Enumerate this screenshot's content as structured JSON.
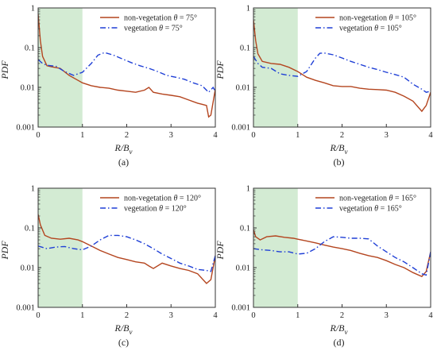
{
  "colors": {
    "non_vegetation": "#b4451f",
    "vegetation": "#1f3fd6",
    "shade": "#d3ebd3",
    "axis": "#333333"
  },
  "chart_data": [
    {
      "type": "line",
      "panel": "(a)",
      "ylabel": "PDF",
      "xlabel": "R/B",
      "xlabel_sub": "v",
      "xlim": [
        0,
        4
      ],
      "ylim": [
        0.001,
        1
      ],
      "yscale": "log",
      "x_ticks": [
        "0",
        "1",
        "2",
        "3",
        "4"
      ],
      "y_ticks": [
        "0.001",
        "0.01",
        "0.1",
        "1"
      ],
      "shaded_x": [
        0,
        1
      ],
      "legend_position": "top-right",
      "series": [
        {
          "name": "non-vegetation θ = 75°",
          "legend_prefix": "non-vegetation ",
          "legend_theta": "θ",
          "legend_value": " = 75°",
          "style": "solid",
          "color": "#b4451f",
          "x": [
            0,
            0.05,
            0.1,
            0.2,
            0.3,
            0.5,
            0.7,
            0.9,
            1.0,
            1.2,
            1.4,
            1.6,
            1.8,
            2.0,
            2.2,
            2.4,
            2.5,
            2.6,
            2.8,
            3.0,
            3.2,
            3.4,
            3.6,
            3.8,
            3.85,
            3.9,
            4.0
          ],
          "y": [
            0.7,
            0.15,
            0.06,
            0.035,
            0.033,
            0.03,
            0.02,
            0.015,
            0.013,
            0.011,
            0.01,
            0.0095,
            0.0085,
            0.008,
            0.0075,
            0.0085,
            0.01,
            0.0075,
            0.0068,
            0.0063,
            0.0058,
            0.0048,
            0.004,
            0.0035,
            0.0018,
            0.002,
            0.009
          ]
        },
        {
          "name": "vegetation θ = 75°",
          "legend_prefix": "vegetation ",
          "legend_theta": "θ",
          "legend_value": " = 75°",
          "style": "dashdot",
          "color": "#1f3fd6",
          "x": [
            0,
            0.1,
            0.2,
            0.4,
            0.6,
            0.8,
            1.0,
            1.2,
            1.35,
            1.5,
            1.7,
            1.9,
            2.1,
            2.3,
            2.5,
            2.7,
            2.9,
            3.1,
            3.3,
            3.5,
            3.7,
            3.85,
            3.95,
            4.0
          ],
          "y": [
            0.05,
            0.04,
            0.036,
            0.034,
            0.025,
            0.02,
            0.024,
            0.04,
            0.065,
            0.075,
            0.065,
            0.052,
            0.042,
            0.035,
            0.03,
            0.025,
            0.02,
            0.018,
            0.016,
            0.013,
            0.011,
            0.0075,
            0.01,
            0.008
          ]
        }
      ]
    },
    {
      "type": "line",
      "panel": "(b)",
      "ylabel": "PDF",
      "xlabel": "R/B",
      "xlabel_sub": "v",
      "xlim": [
        0,
        4
      ],
      "ylim": [
        0.001,
        1
      ],
      "yscale": "log",
      "x_ticks": [
        "0",
        "1",
        "2",
        "3",
        "4"
      ],
      "y_ticks": [
        "0.001",
        "0.01",
        "0.1",
        "1"
      ],
      "shaded_x": [
        0,
        1
      ],
      "legend_position": "top-right",
      "series": [
        {
          "name": "non-vegetation θ = 105°",
          "legend_prefix": "non-vegetation ",
          "legend_theta": "θ",
          "legend_value": " = 105°",
          "style": "solid",
          "color": "#b4451f",
          "x": [
            0,
            0.05,
            0.1,
            0.2,
            0.4,
            0.6,
            0.8,
            1.0,
            1.2,
            1.4,
            1.6,
            1.8,
            2.0,
            2.2,
            2.4,
            2.6,
            2.8,
            3.0,
            3.2,
            3.4,
            3.6,
            3.8,
            3.9,
            4.0
          ],
          "y": [
            0.5,
            0.15,
            0.07,
            0.045,
            0.04,
            0.038,
            0.032,
            0.025,
            0.018,
            0.015,
            0.013,
            0.011,
            0.0105,
            0.0105,
            0.0095,
            0.009,
            0.0088,
            0.0085,
            0.0075,
            0.006,
            0.0045,
            0.0025,
            0.0035,
            0.0075
          ]
        },
        {
          "name": "vegetation θ = 105°",
          "legend_prefix": "vegetation ",
          "legend_theta": "θ",
          "legend_value": " = 105°",
          "style": "dashdot",
          "color": "#1f3fd6",
          "x": [
            0,
            0.1,
            0.2,
            0.4,
            0.6,
            0.8,
            1.0,
            1.2,
            1.4,
            1.5,
            1.6,
            1.8,
            2.0,
            2.2,
            2.4,
            2.6,
            2.8,
            3.0,
            3.2,
            3.4,
            3.6,
            3.8,
            3.9,
            4.0
          ],
          "y": [
            0.06,
            0.04,
            0.032,
            0.03,
            0.022,
            0.02,
            0.019,
            0.025,
            0.055,
            0.072,
            0.073,
            0.066,
            0.055,
            0.045,
            0.038,
            0.032,
            0.028,
            0.024,
            0.021,
            0.018,
            0.012,
            0.009,
            0.0075,
            0.008
          ]
        }
      ]
    },
    {
      "type": "line",
      "panel": "(c)",
      "ylabel": "PDF",
      "xlabel": "R/B",
      "xlabel_sub": "v",
      "xlim": [
        0,
        4
      ],
      "ylim": [
        0.001,
        1
      ],
      "yscale": "log",
      "x_ticks": [
        "0",
        "1",
        "2",
        "3",
        "4"
      ],
      "y_ticks": [
        "0.001",
        "0.01",
        "0.1",
        "1"
      ],
      "shaded_x": [
        0,
        1
      ],
      "legend_position": "top-right",
      "series": [
        {
          "name": "non-vegetation θ = 120°",
          "legend_prefix": "non-vegetation ",
          "legend_theta": "θ",
          "legend_value": " = 120°",
          "style": "solid",
          "color": "#b4451f",
          "x": [
            0,
            0.05,
            0.15,
            0.3,
            0.5,
            0.7,
            0.9,
            1.0,
            1.2,
            1.4,
            1.6,
            1.8,
            2.0,
            2.2,
            2.4,
            2.5,
            2.6,
            2.8,
            3.0,
            3.2,
            3.4,
            3.6,
            3.8,
            3.9,
            4.0
          ],
          "y": [
            0.22,
            0.12,
            0.065,
            0.055,
            0.052,
            0.055,
            0.05,
            0.045,
            0.035,
            0.027,
            0.022,
            0.018,
            0.016,
            0.014,
            0.013,
            0.011,
            0.0095,
            0.013,
            0.011,
            0.0095,
            0.0085,
            0.007,
            0.004,
            0.005,
            0.02
          ]
        },
        {
          "name": "vegetation θ = 120°",
          "legend_prefix": "vegetation ",
          "legend_theta": "θ",
          "legend_value": " = 120°",
          "style": "dashdot",
          "color": "#1f3fd6",
          "x": [
            0,
            0.2,
            0.4,
            0.6,
            0.8,
            1.0,
            1.2,
            1.4,
            1.6,
            1.8,
            2.0,
            2.2,
            2.4,
            2.6,
            2.8,
            3.0,
            3.2,
            3.4,
            3.6,
            3.8,
            3.9,
            4.0
          ],
          "y": [
            0.035,
            0.03,
            0.033,
            0.034,
            0.03,
            0.028,
            0.035,
            0.05,
            0.065,
            0.065,
            0.06,
            0.05,
            0.04,
            0.03,
            0.022,
            0.017,
            0.013,
            0.011,
            0.009,
            0.0085,
            0.008,
            0.02
          ]
        }
      ]
    },
    {
      "type": "line",
      "panel": "(d)",
      "ylabel": "PDF",
      "xlabel": "R/B",
      "xlabel_sub": "v",
      "xlim": [
        0,
        4
      ],
      "ylim": [
        0.001,
        1
      ],
      "yscale": "log",
      "x_ticks": [
        "0",
        "1",
        "2",
        "3",
        "4"
      ],
      "y_ticks": [
        "0.001",
        "0.01",
        "0.1",
        "1"
      ],
      "shaded_x": [
        0,
        1
      ],
      "legend_position": "top-right",
      "series": [
        {
          "name": "non-vegetation θ = 165°",
          "legend_prefix": "non-vegetation ",
          "legend_theta": "θ",
          "legend_value": " = 165°",
          "style": "solid",
          "color": "#b4451f",
          "x": [
            0,
            0.05,
            0.15,
            0.3,
            0.5,
            0.7,
            0.9,
            1.0,
            1.2,
            1.4,
            1.6,
            1.8,
            2.0,
            2.2,
            2.4,
            2.6,
            2.8,
            3.0,
            3.2,
            3.4,
            3.6,
            3.8,
            3.9,
            4.0
          ],
          "y": [
            0.09,
            0.06,
            0.05,
            0.06,
            0.063,
            0.058,
            0.055,
            0.052,
            0.047,
            0.042,
            0.037,
            0.033,
            0.03,
            0.027,
            0.023,
            0.02,
            0.018,
            0.015,
            0.012,
            0.01,
            0.0075,
            0.006,
            0.008,
            0.025
          ]
        },
        {
          "name": "vegetation θ = 165°",
          "legend_prefix": "vegetation ",
          "legend_theta": "θ",
          "legend_value": " = 165°",
          "style": "dashdot",
          "color": "#1f3fd6",
          "x": [
            0,
            0.2,
            0.4,
            0.6,
            0.8,
            1.0,
            1.2,
            1.4,
            1.6,
            1.8,
            2.0,
            2.2,
            2.4,
            2.6,
            2.8,
            3.0,
            3.2,
            3.4,
            3.6,
            3.8,
            3.9,
            4.0
          ],
          "y": [
            0.03,
            0.028,
            0.027,
            0.025,
            0.025,
            0.022,
            0.023,
            0.03,
            0.045,
            0.06,
            0.058,
            0.055,
            0.055,
            0.053,
            0.035,
            0.025,
            0.018,
            0.014,
            0.01,
            0.007,
            0.0065,
            0.025
          ]
        }
      ]
    }
  ]
}
